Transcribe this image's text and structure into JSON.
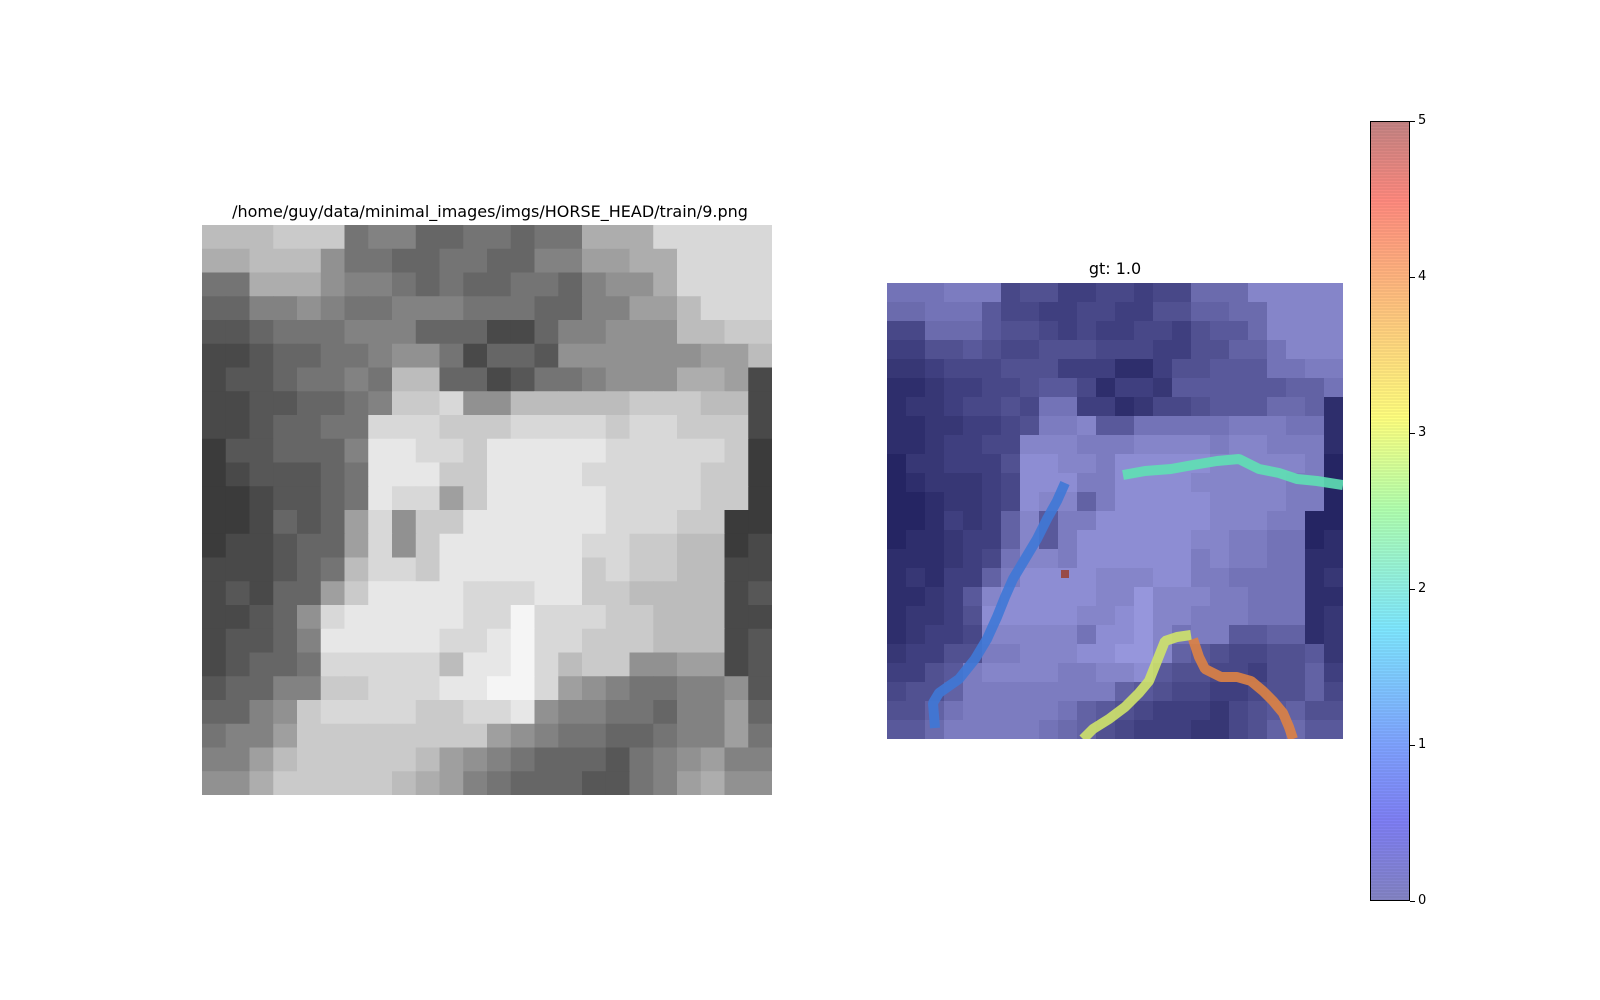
{
  "left_panel": {
    "title": "/home/guy/data/minimal_images/imgs/HORSE_HEAD/train/9.png"
  },
  "right_panel": {
    "title": "gt: 1.0"
  },
  "colorbar": {
    "min": 0,
    "max": 5,
    "tick_labels": [
      "0",
      "1",
      "2",
      "3",
      "4",
      "5"
    ],
    "colormap": "jet"
  },
  "overlay_contours": [
    {
      "level": 1,
      "color": "#3f78d6"
    },
    {
      "level": 2,
      "color": "#5fe0b4"
    },
    {
      "level": 3,
      "color": "#cfe36a"
    },
    {
      "level": 4,
      "color": "#dd8244"
    },
    {
      "level": 5,
      "color": "#9a3f2f"
    }
  ]
}
